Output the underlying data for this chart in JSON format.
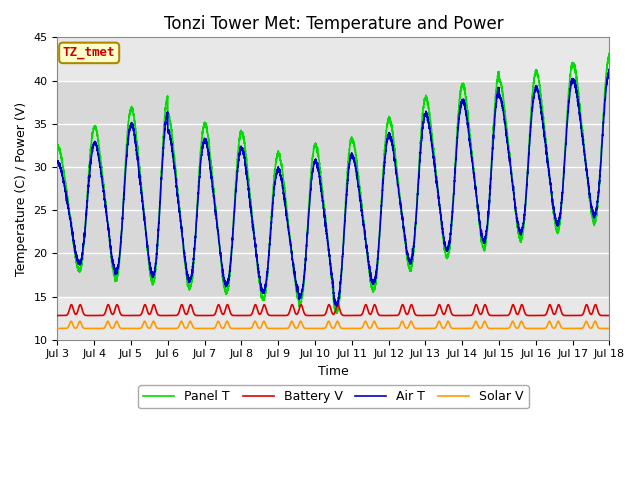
{
  "title": "Tonzi Tower Met: Temperature and Power",
  "xlabel": "Time",
  "ylabel": "Temperature (C) / Power (V)",
  "ylim": [
    10,
    45
  ],
  "xlim_start": 3,
  "xlim_end": 18,
  "x_ticks": [
    3,
    4,
    5,
    6,
    7,
    8,
    9,
    10,
    11,
    12,
    13,
    14,
    15,
    16,
    17,
    18
  ],
  "x_tick_labels": [
    "Jul 3",
    "Jul 4",
    "Jul 5",
    "Jul 6",
    "Jul 7",
    "Jul 8",
    "Jul 9",
    "Jul 10",
    "Jul 11",
    "Jul 12",
    "Jul 13",
    "Jul 14",
    "Jul 15",
    "Jul 16",
    "Jul 17",
    "Jul 18"
  ],
  "shaded_ymin": 15,
  "shaded_ymax": 40,
  "label_box_text": "TZ_tmet",
  "legend_labels": [
    "Panel T",
    "Battery V",
    "Air T",
    "Solar V"
  ],
  "panel_t_color": "#00dd00",
  "battery_v_color": "#dd0000",
  "air_t_color": "#0000cc",
  "solar_v_color": "#ff9900",
  "background_color": "#ffffff",
  "plot_bg_color": "#e8e8e8",
  "shaded_color": "#d8d8d8",
  "title_fontsize": 12,
  "axis_fontsize": 9,
  "tick_fontsize": 8,
  "legend_fontsize": 9
}
